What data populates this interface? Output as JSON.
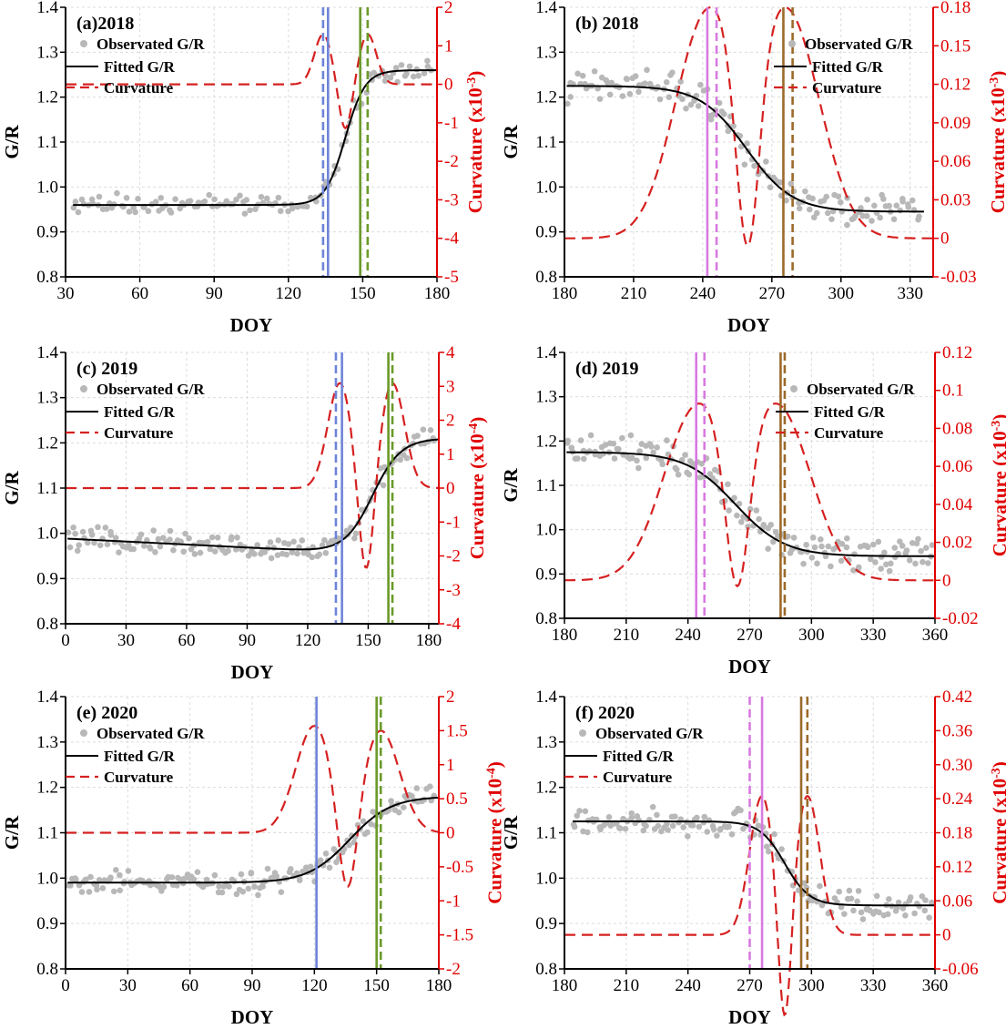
{
  "chart_data": [
    {
      "type": "line",
      "panel_label": "(a)2018",
      "xlabel": "DOY",
      "ylabel": "G/R",
      "y2label": "Curvature (x10",
      "y2exp": "-3",
      "xlim": [
        30,
        180
      ],
      "xticks": [
        30,
        60,
        90,
        120,
        150,
        180
      ],
      "ylim": [
        0.8,
        1.4
      ],
      "yticks": [
        "0.8",
        "0.9",
        "1.0",
        "1.1",
        "1.2",
        "1.3",
        "1.4"
      ],
      "y2lim": [
        -5,
        2
      ],
      "y2ticks": [
        "-5",
        "-4",
        "-3",
        "-2",
        "-1",
        "0",
        "1",
        "2"
      ],
      "legend": [
        "Observated G/R",
        "Fitted G/R",
        "Curvature"
      ],
      "legend_position": "top-left",
      "fit": {
        "kind": "rise",
        "base": 0.96,
        "top": 1.26,
        "mid": 143,
        "scale": 4.0
      },
      "curvature": {
        "baseline": 0.0,
        "peaks": [
          {
            "x": 134,
            "v": 1.3,
            "w": 3.5
          },
          {
            "x": 152,
            "v": 1.3,
            "w": 3.5
          }
        ]
      },
      "observed_pattern": {
        "x0": 33,
        "x1": 178,
        "n": 120,
        "noise": 0.018
      },
      "vlines": [
        {
          "x": 134,
          "color": "#6e84d8",
          "dash": true
        },
        {
          "x": 136,
          "color": "#6e84d8",
          "dash": false
        },
        {
          "x": 149,
          "color": "#6a9a2a",
          "dash": false
        },
        {
          "x": 152,
          "color": "#6a9a2a",
          "dash": true
        }
      ]
    },
    {
      "type": "line",
      "panel_label": "(b) 2018",
      "xlabel": "DOY",
      "ylabel": "G/R",
      "y2label": "Curvature (x10",
      "y2exp": "-3",
      "xlim": [
        180,
        340
      ],
      "xticks": [
        180,
        210,
        240,
        270,
        300,
        330
      ],
      "ylim": [
        0.8,
        1.4
      ],
      "yticks": [
        "0.8",
        "0.9",
        "1.0",
        "1.1",
        "1.2",
        "1.3",
        "1.4"
      ],
      "y2lim": [
        -0.03,
        0.18
      ],
      "y2ticks": [
        "-0.03",
        "0",
        "0.03",
        "0.06",
        "0.09",
        "0.12",
        "0.15",
        "0.18"
      ],
      "legend": [
        "Observated G/R",
        "Fitted G/R",
        "Curvature"
      ],
      "legend_position": "top-right",
      "fit": {
        "kind": "fall",
        "base": 0.945,
        "top": 1.225,
        "mid": 259,
        "scale": 10.0
      },
      "curvature": {
        "baseline": 0.0,
        "peaks": [
          {
            "x": 242,
            "v": 0.172,
            "w": 14
          },
          {
            "x": 277,
            "v": 0.172,
            "w": 14
          }
        ]
      },
      "observed_pattern": {
        "x0": 181,
        "x1": 334,
        "n": 140,
        "noise": 0.03
      },
      "vlines": [
        {
          "x": 242,
          "color": "#d87ae0",
          "dash": false
        },
        {
          "x": 246,
          "color": "#d87ae0",
          "dash": true
        },
        {
          "x": 275,
          "color": "#9c6a2a",
          "dash": false
        },
        {
          "x": 279,
          "color": "#9c6a2a",
          "dash": true
        }
      ]
    },
    {
      "type": "line",
      "panel_label": "(c) 2019",
      "xlabel": "DOY",
      "ylabel": "G/R",
      "y2label": "Curvature (x10",
      "y2exp": "-4",
      "xlim": [
        0,
        185
      ],
      "xticks": [
        0,
        30,
        60,
        90,
        120,
        150,
        180
      ],
      "ylim": [
        0.8,
        1.4
      ],
      "yticks": [
        "0.8",
        "0.9",
        "1.0",
        "1.1",
        "1.2",
        "1.3",
        "1.4"
      ],
      "y2lim": [
        -4,
        4
      ],
      "y2ticks": [
        "-4",
        "-3",
        "-2",
        "-1",
        "0",
        "1",
        "2",
        "3",
        "4"
      ],
      "legend": [
        "Observated G/R",
        "Fitted G/R",
        "Curvature"
      ],
      "legend_position": "top-left",
      "fit": {
        "kind": "rise",
        "base": 0.955,
        "top": 1.21,
        "mid": 152,
        "scale": 7.0,
        "slope": -0.00022
      },
      "curvature": {
        "baseline": 0.0,
        "peaks": [
          {
            "x": 136,
            "v": 3.1,
            "w": 6
          },
          {
            "x": 162,
            "v": 3.1,
            "w": 6
          }
        ]
      },
      "observed_pattern": {
        "x0": 1,
        "x1": 183,
        "n": 150,
        "noise": 0.02
      },
      "vlines": [
        {
          "x": 134,
          "color": "#6e84d8",
          "dash": true
        },
        {
          "x": 137,
          "color": "#6e84d8",
          "dash": false
        },
        {
          "x": 160,
          "color": "#6a9a2a",
          "dash": false
        },
        {
          "x": 162,
          "color": "#6a9a2a",
          "dash": true
        }
      ]
    },
    {
      "type": "line",
      "panel_label": "(d) 2019",
      "xlabel": "DOY",
      "ylabel": "G/R",
      "y2label": "Curvature (x10",
      "y2exp": "-3",
      "xlim": [
        180,
        360
      ],
      "xticks": [
        180,
        210,
        240,
        270,
        300,
        330,
        360
      ],
      "ylim": [
        0.8,
        1.4
      ],
      "yticks": [
        "0.8",
        "0.9",
        "1.0",
        "1.1",
        "1.2",
        "1.3",
        "1.4"
      ],
      "y2lim": [
        -0.02,
        0.12
      ],
      "y2ticks": [
        "-0.02",
        "0",
        "0.02",
        "0.04",
        "0.06",
        "0.08",
        "0.1",
        "0.12"
      ],
      "legend": [
        "Observated G/R",
        "Fitted G/R",
        "Curvature"
      ],
      "legend_position": "top-right",
      "fit": {
        "kind": "fall",
        "base": 0.94,
        "top": 1.175,
        "mid": 263,
        "scale": 12.0
      },
      "curvature": {
        "baseline": 0.0,
        "peaks": [
          {
            "x": 244,
            "v": 0.089,
            "w": 16
          },
          {
            "x": 284,
            "v": 0.089,
            "w": 16
          }
        ]
      },
      "observed_pattern": {
        "x0": 181,
        "x1": 359,
        "n": 160,
        "noise": 0.03
      },
      "vlines": [
        {
          "x": 244,
          "color": "#d87ae0",
          "dash": false
        },
        {
          "x": 248,
          "color": "#d87ae0",
          "dash": true
        },
        {
          "x": 285,
          "color": "#9c6a2a",
          "dash": false
        },
        {
          "x": 287,
          "color": "#9c6a2a",
          "dash": true
        }
      ]
    },
    {
      "type": "line",
      "panel_label": "(e) 2020",
      "xlabel": "DOY",
      "ylabel": "G/R",
      "y2label": "Curvature (x10",
      "y2exp": "-4",
      "xlim": [
        0,
        180
      ],
      "xticks": [
        0,
        30,
        60,
        90,
        120,
        150,
        180
      ],
      "ylim": [
        0.8,
        1.4
      ],
      "yticks": [
        "0.8",
        "0.9",
        "1.0",
        "1.1",
        "1.2",
        "1.3",
        "1.4"
      ],
      "y2lim": [
        -2,
        2
      ],
      "y2ticks": [
        "-2",
        "-1.5",
        "-1",
        "-0.5",
        "0",
        "0.5",
        "1",
        "1.5",
        "2"
      ],
      "legend": [
        "Observated G/R",
        "Fitted G/R",
        "Curvature"
      ],
      "legend_position": "top-left",
      "fit": {
        "kind": "rise",
        "base": 0.99,
        "top": 1.18,
        "mid": 137,
        "scale": 10.0
      },
      "curvature": {
        "baseline": 0.0,
        "peaks": [
          {
            "x": 120,
            "v": 1.57,
            "w": 9
          },
          {
            "x": 152,
            "v": 1.5,
            "w": 9
          }
        ]
      },
      "observed_pattern": {
        "x0": 1,
        "x1": 178,
        "n": 160,
        "noise": 0.02
      },
      "vlines": [
        {
          "x": 121,
          "color": "#6e84d8",
          "dash": false
        },
        {
          "x": 150,
          "color": "#6a9a2a",
          "dash": false
        },
        {
          "x": 152,
          "color": "#6a9a2a",
          "dash": true
        }
      ]
    },
    {
      "type": "line",
      "panel_label": "(f)  2020",
      "xlabel": "DOY",
      "ylabel": "G/R",
      "y2label": "Curvature (x10",
      "y2exp": "-3",
      "xlim": [
        180,
        360
      ],
      "xticks": [
        180,
        210,
        240,
        270,
        300,
        330,
        360
      ],
      "ylim": [
        0.8,
        1.4
      ],
      "yticks": [
        "0.8",
        "0.9",
        "1.0",
        "1.1",
        "1.2",
        "1.3",
        "1.4"
      ],
      "y2lim": [
        -0.06,
        0.42
      ],
      "y2ticks": [
        "-0.06",
        "0",
        "0.06",
        "0.12",
        "0.18",
        "0.24",
        "0.30",
        "0.36",
        "0.42"
      ],
      "legend": [
        "Observated G/R",
        "Fitted G/R",
        "Curvature"
      ],
      "legend_position": "top-left",
      "fit": {
        "kind": "fall",
        "base": 0.94,
        "top": 1.125,
        "mid": 287,
        "scale": 6.0
      },
      "curvature": {
        "baseline": 0.0,
        "peaks": [
          {
            "x": 276,
            "v": 0.245,
            "w": 6
          },
          {
            "x": 298,
            "v": 0.245,
            "w": 6
          }
        ]
      },
      "observed_pattern": {
        "x0": 184,
        "x1": 358,
        "n": 150,
        "noise": 0.025
      },
      "vlines": [
        {
          "x": 270,
          "color": "#d87ae0",
          "dash": true
        },
        {
          "x": 276,
          "color": "#d87ae0",
          "dash": false
        },
        {
          "x": 295,
          "color": "#9c6a2a",
          "dash": false
        },
        {
          "x": 298,
          "color": "#9c6a2a",
          "dash": true
        }
      ]
    }
  ]
}
